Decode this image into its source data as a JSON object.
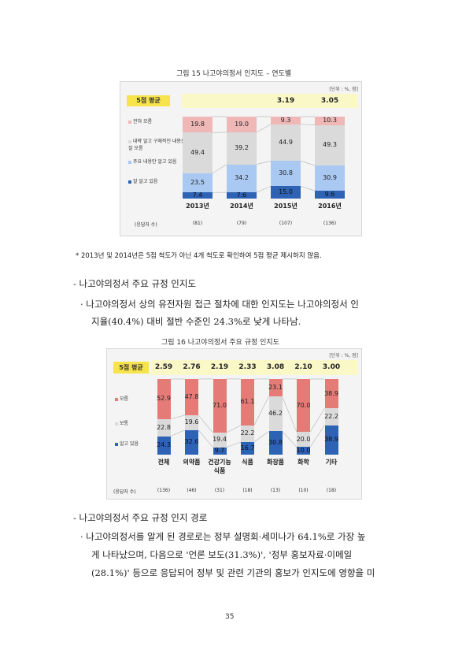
{
  "figure15": {
    "title": "그림 15 나고야의정서 인지도 – 연도별",
    "unit": "[단위 : %, 점]",
    "avg_label": "5점 평균",
    "legend": [
      "전혀 모름",
      "대략 알고 구체적인 내용은 잘 모름",
      "주요 내용만 알고 있음",
      "잘 알고 있음"
    ],
    "respondent_label": "(응답자 수)",
    "chart_data": {
      "type": "bar",
      "stacked": true,
      "categories": [
        "2013년",
        "2014년",
        "2015년",
        "2016년"
      ],
      "respondents": [
        "(81)",
        "(79)",
        "(107)",
        "(136)"
      ],
      "averages": [
        "",
        "",
        "3.19",
        "3.05"
      ],
      "series": [
        {
          "name": "잘 알고 있음",
          "values": [
            7.4,
            7.6,
            15.0,
            9.6
          ],
          "color": "#2e62b4"
        },
        {
          "name": "주요 내용만 알고 있음",
          "values": [
            23.5,
            34.2,
            30.8,
            30.9
          ],
          "color": "#a9c9f3"
        },
        {
          "name": "대략 알고 구체적인 내용은 잘 모름",
          "values": [
            49.4,
            39.2,
            44.9,
            49.3
          ],
          "color": "#dadada"
        },
        {
          "name": "전혀 모름",
          "values": [
            19.8,
            19.0,
            9.3,
            10.3
          ],
          "color": "#f0b7b7"
        }
      ]
    }
  },
  "note15": "* 2013년 및 2014년은 5점 척도가 아닌 4개 척도로 확인하여 5점 평균 제시하지 않음.",
  "section1": {
    "heading": "- 나고야의정서 주요 규정 인지도",
    "line1": "· 나고야의정서 상의 유전자원 접근 절차에 대한 인지도는 나고야의정서 인",
    "line2": "지율(40.4%) 대비 절반 수준인 24.3%로 낮게 나타남."
  },
  "figure16": {
    "title": "그림 16 나고야의정서 주요 규정 인지도",
    "unit": "[단위 : %, 점]",
    "avg_label": "5점 평균",
    "legend": [
      "모름",
      "보통",
      "알고 있음"
    ],
    "respondent_label": "(응답자 수)",
    "chart_data": {
      "type": "bar",
      "stacked": true,
      "categories": [
        "전체",
        "의약품",
        "건강기능\n식품",
        "식품",
        "화장품",
        "화학",
        "기타"
      ],
      "respondents": [
        "(136)",
        "(46)",
        "(31)",
        "(18)",
        "(13)",
        "(10)",
        "(18)"
      ],
      "averages": [
        "2.59",
        "2.76",
        "2.19",
        "2.33",
        "3.08",
        "2.10",
        "3.00"
      ],
      "series": [
        {
          "name": "알고 있음",
          "values": [
            24.3,
            32.6,
            9.7,
            16.7,
            30.8,
            10.0,
            38.9
          ],
          "color": "#2e62b4"
        },
        {
          "name": "보통",
          "values": [
            22.8,
            19.6,
            19.4,
            22.2,
            46.2,
            20.0,
            22.2
          ],
          "color": "#dadada"
        },
        {
          "name": "모름",
          "values": [
            52.9,
            47.8,
            71.0,
            61.1,
            23.1,
            70.0,
            38.9
          ],
          "color": "#e57b76"
        }
      ]
    }
  },
  "section2": {
    "heading": "- 나고야의정서 주요 규정 인지 경로",
    "line1": "· 나고야의정서를 알게 된 경로로는 정부 설명회·세미나가 64.1%로 가장 높",
    "line2": "게 나타났으며, 다음으로 '언론 보도(31.3%)', '정부 홍보자료·이메일",
    "line3": "(28.1%)' 등으로 응답되어 정부 및 관련 기관의 홍보가 인지도에 영향을 미"
  },
  "page_number": "35"
}
